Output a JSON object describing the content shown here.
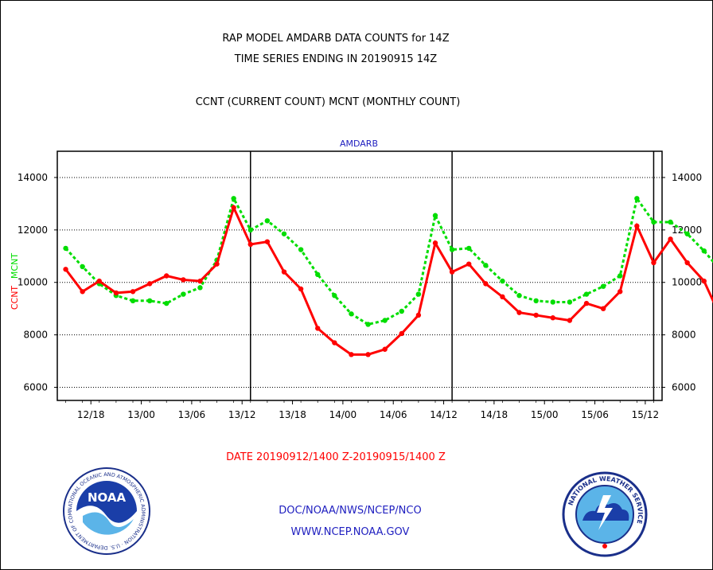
{
  "header": {
    "title_line1": "RAP MODEL AMDARB DATA COUNTS for 14Z",
    "title_line2": "TIME SERIES ENDING IN 20190915 14Z",
    "subtitle": "CCNT (CURRENT COUNT) MCNT (MONTHLY COUNT)"
  },
  "footer": {
    "date_range": "DATE 20190912/1400 Z-20190915/1400 Z",
    "org": "DOC/NOAA/NWS/NCEP/NCO",
    "url": "WWW.NCEP.NOAA.GOV"
  },
  "logos": {
    "noaa": {
      "text": "NOAA",
      "ring_text": "NATIONAL OCEANIC AND ATMOSPHERIC ADMINISTRATION · U.S. DEPARTMENT OF COMMERCE"
    },
    "nws": {
      "ring_text": "NATIONAL WEATHER SERVICE"
    }
  },
  "colors": {
    "ccnt": "#ff0000",
    "mcnt": "#00dd00",
    "title": "#000000",
    "panel_label": "#2020c0",
    "footer_red": "#ff0000",
    "footer_blue": "#2020c0"
  },
  "chart_data": {
    "type": "line",
    "panel_label": "AMDARB",
    "ylabel_left_series": [
      "CCNT",
      "MCNT"
    ],
    "ylim": [
      5500,
      15000
    ],
    "yticks": [
      6000,
      8000,
      10000,
      12000,
      14000
    ],
    "ytick_labels": [
      "6000",
      "8000",
      "10000",
      "12000",
      "14000"
    ],
    "x_interval_hours": 2,
    "x_range_hours": [
      -1,
      71
    ],
    "xtick_positions": [
      3,
      9,
      15,
      21,
      27,
      33,
      39,
      45,
      51,
      57,
      63,
      69
    ],
    "xtick_labels": [
      "12/18",
      "13/00",
      "13/06",
      "13/12",
      "13/18",
      "14/00",
      "14/06",
      "14/12",
      "14/18",
      "15/00",
      "15/06",
      "15/12"
    ],
    "day_boundaries": [
      22,
      46,
      70
    ],
    "grid": true,
    "series": [
      {
        "name": "CCNT",
        "color": "#ff0000",
        "values": [
          10500,
          9650,
          10050,
          9600,
          9650,
          9950,
          10250,
          10100,
          10050,
          10700,
          12850,
          11450,
          11550,
          10400,
          9750,
          8250,
          7700,
          7250,
          7250,
          7450,
          8050,
          8750,
          11500,
          10400,
          10700,
          9950,
          9450,
          8850,
          8750,
          8650,
          8550,
          9200,
          9000,
          9650,
          12150,
          10750,
          11650,
          10750,
          10050,
          8650,
          8250,
          7600,
          7350,
          7500,
          8000,
          8500,
          12150,
          10850,
          11250,
          10700,
          10250,
          9250,
          9300,
          8550,
          8500,
          8950,
          9000,
          10100,
          12450,
          11300,
          11850,
          11250,
          10800,
          9900,
          9450,
          8850,
          8450,
          8350,
          8550,
          8650,
          11900,
          10400,
          11000
        ]
      },
      {
        "name": "MCNT",
        "color": "#00dd00",
        "values": [
          11300,
          10600,
          9950,
          9500,
          9300,
          9300,
          9200,
          9550,
          9800,
          10850,
          13200,
          12000,
          12350,
          11850,
          11250,
          10300,
          9500,
          8800,
          8400,
          8550,
          8900,
          9550,
          12550,
          11250,
          11300,
          10650,
          10050,
          9500,
          9300,
          9250,
          9250,
          9550,
          9850,
          10250,
          13200,
          12300,
          12300,
          11850,
          11200,
          10450,
          9400,
          8700,
          8350,
          8600,
          8950,
          9550,
          12550,
          11250,
          11250,
          10600,
          9950,
          9400,
          9250,
          9250,
          9200,
          9350,
          9650,
          10300,
          13150,
          12200,
          12300,
          11800,
          11150,
          10200,
          9200,
          8600,
          8300,
          8500,
          8800,
          9450,
          12550,
          11200,
          11200
        ]
      }
    ]
  }
}
